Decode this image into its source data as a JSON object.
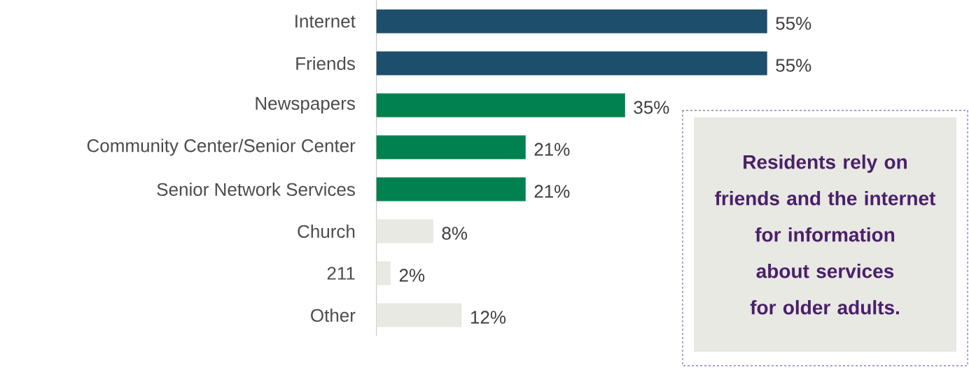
{
  "chart_data": {
    "type": "bar",
    "orientation": "horizontal",
    "categories": [
      "Internet",
      "Friends",
      "Newspapers",
      "Community Center/Senior Center",
      "Senior Network Services",
      "Church",
      "211",
      "Other"
    ],
    "values": [
      55,
      55,
      35,
      21,
      21,
      8,
      2,
      12
    ],
    "colors": [
      "#1d4e6b",
      "#1d4e6b",
      "#00814f",
      "#00814f",
      "#00814f",
      "#e8e9e3",
      "#e8e9e3",
      "#e8e9e3"
    ],
    "value_labels": [
      "55%",
      "55%",
      "35%",
      "21%",
      "21%",
      "8%",
      "2%",
      "12%"
    ],
    "annotations": [
      "Residents rely on friends and the internet for information about services for older adults."
    ]
  }
}
